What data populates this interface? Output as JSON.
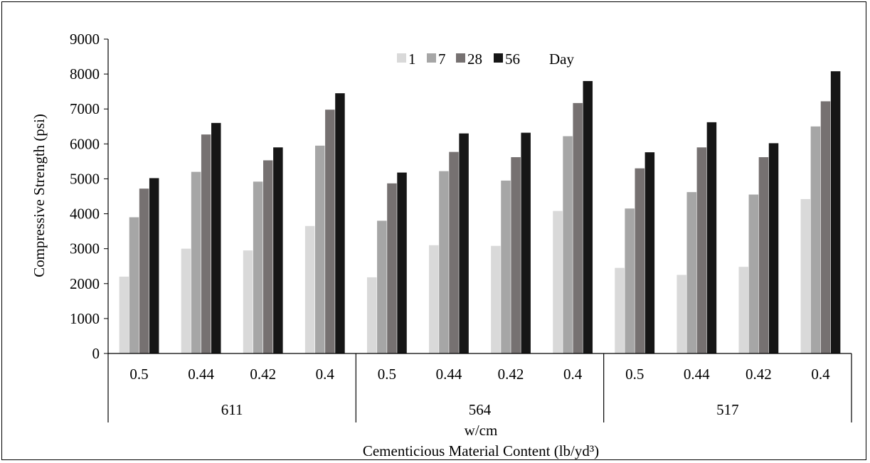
{
  "chart_data": {
    "type": "bar",
    "ylabel": "Compressive Strength (psi)",
    "xlabel": "w/cm",
    "xlabel2": "Cementicious Material Content (lb/yd³)",
    "ylim": [
      0,
      9000
    ],
    "yticks": [
      0,
      1000,
      2000,
      3000,
      4000,
      5000,
      6000,
      7000,
      8000,
      9000
    ],
    "groups": [
      {
        "label": "611",
        "categories": [
          "0.5",
          "0.44",
          "0.42",
          "0.4"
        ]
      },
      {
        "label": "564",
        "categories": [
          "0.5",
          "0.44",
          "0.42",
          "0.4"
        ]
      },
      {
        "label": "517",
        "categories": [
          "0.5",
          "0.44",
          "0.42",
          "0.4"
        ]
      }
    ],
    "legend": {
      "suffix": "Day",
      "placement": "top-center"
    },
    "series": [
      {
        "name": "1",
        "color": "#d9d9d9",
        "values": [
          2200,
          3000,
          2950,
          3650,
          2180,
          3100,
          3080,
          4080,
          2450,
          2250,
          2480,
          4420
        ]
      },
      {
        "name": "7",
        "color": "#a6a6a6",
        "values": [
          3900,
          5200,
          4920,
          5950,
          3800,
          5220,
          4950,
          6220,
          4150,
          4620,
          4550,
          6500
        ]
      },
      {
        "name": "28",
        "color": "#767171",
        "values": [
          4720,
          6270,
          5530,
          6980,
          4870,
          5770,
          5620,
          7170,
          5300,
          5900,
          5620,
          7220
        ]
      },
      {
        "name": "56",
        "color": "#161616",
        "values": [
          5020,
          6600,
          5900,
          7450,
          5180,
          6300,
          6320,
          7800,
          5760,
          6620,
          6020,
          8080
        ]
      }
    ]
  }
}
